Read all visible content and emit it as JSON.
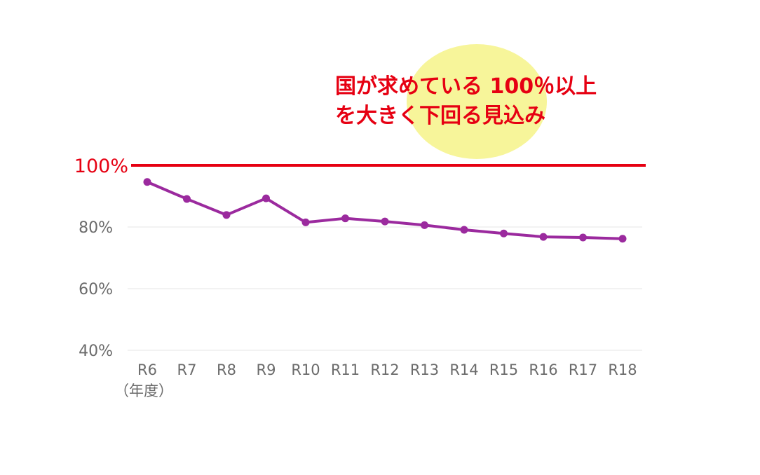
{
  "chart_data": {
    "type": "line",
    "categories": [
      "R6",
      "R7",
      "R8",
      "R9",
      "R10",
      "R11",
      "R12",
      "R13",
      "R14",
      "R15",
      "R16",
      "R17",
      "R18"
    ],
    "x_unit_label": "（年度）",
    "series": [
      {
        "values": [
          94.6,
          89.1,
          83.9,
          89.3,
          81.5,
          82.8,
          81.8,
          80.6,
          79.1,
          77.9,
          76.8,
          76.6,
          76.2
        ]
      }
    ],
    "yticks": [
      "100%",
      "80%",
      "60%",
      "40%"
    ],
    "ytick_values": [
      100,
      80,
      60,
      40
    ],
    "ylim": [
      40,
      100
    ],
    "grid": true,
    "reference_line": {
      "value": 100,
      "label": "100%"
    },
    "annotation": {
      "lines": [
        "国が求めている 100％以上",
        "を大きく下回る見込み"
      ]
    },
    "colors": {
      "series": "#9b2a9e",
      "reference": "#e60012",
      "annotation_text": "#e60012",
      "highlight": "#f7f59a",
      "grid": "#e6e6e6",
      "tick_text": "#6b6b6b"
    }
  }
}
